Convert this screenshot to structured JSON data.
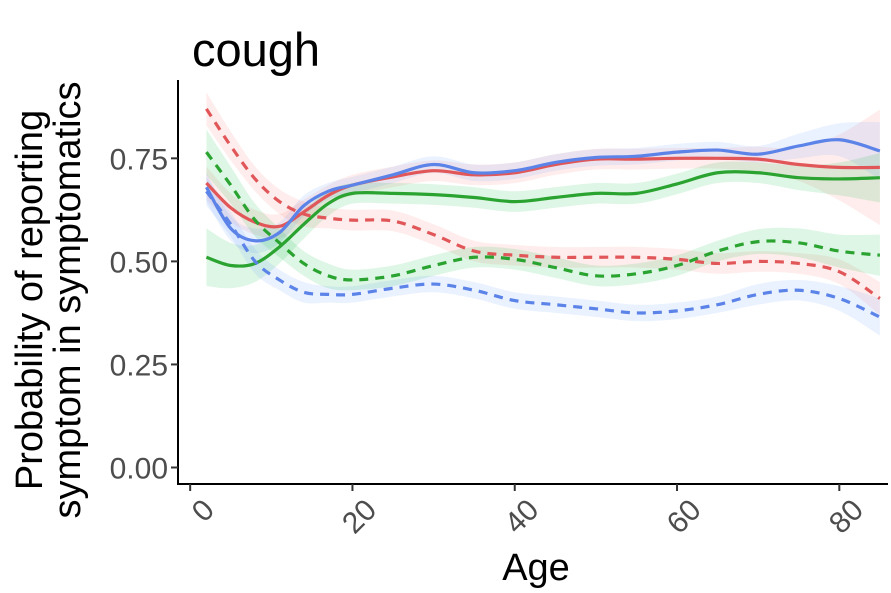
{
  "chart_data": {
    "type": "line",
    "title": "cough",
    "xlabel": "Age",
    "ylabel_lines": [
      "Probability of reporting",
      "symptom in symptomatics"
    ],
    "xlim": [
      -1.5,
      86
    ],
    "ylim": [
      -0.04,
      0.94
    ],
    "x_ticks": [
      0,
      20,
      40,
      60,
      80
    ],
    "x_tick_labels": [
      "0",
      "20",
      "40",
      "60",
      "80"
    ],
    "y_ticks": [
      0,
      0.25,
      0.5,
      0.75
    ],
    "y_tick_labels": [
      "0.00",
      "0.25",
      "0.50",
      "0.75"
    ],
    "grid": false,
    "legend": "none",
    "series": [
      {
        "color": "#E15759",
        "dash": "solid",
        "band_color": "#F8766D",
        "x": [
          2,
          5,
          8,
          11,
          14,
          17,
          20,
          25,
          30,
          35,
          40,
          45,
          50,
          55,
          60,
          65,
          70,
          75,
          80,
          85
        ],
        "y": [
          0.69,
          0.63,
          0.595,
          0.585,
          0.62,
          0.66,
          0.685,
          0.705,
          0.72,
          0.71,
          0.715,
          0.735,
          0.748,
          0.748,
          0.75,
          0.75,
          0.748,
          0.735,
          0.728,
          0.728
        ],
        "band": [
          0.04,
          0.035,
          0.03,
          0.03,
          0.03,
          0.025,
          0.025,
          0.025,
          0.025,
          0.025,
          0.025,
          0.025,
          0.025,
          0.025,
          0.025,
          0.025,
          0.03,
          0.04,
          0.08,
          0.14
        ]
      },
      {
        "color": "#5B83E8",
        "dash": "solid",
        "band_color": "#619CFF",
        "x": [
          2,
          5,
          8,
          11,
          14,
          17,
          20,
          25,
          30,
          35,
          40,
          45,
          50,
          55,
          60,
          65,
          70,
          75,
          80,
          85
        ],
        "y": [
          0.68,
          0.58,
          0.55,
          0.57,
          0.635,
          0.67,
          0.685,
          0.71,
          0.735,
          0.715,
          0.72,
          0.74,
          0.752,
          0.755,
          0.765,
          0.77,
          0.76,
          0.78,
          0.795,
          0.768
        ],
        "band": [
          0.035,
          0.03,
          0.03,
          0.025,
          0.025,
          0.02,
          0.02,
          0.02,
          0.02,
          0.02,
          0.02,
          0.02,
          0.02,
          0.02,
          0.02,
          0.02,
          0.02,
          0.03,
          0.04,
          0.07
        ]
      },
      {
        "color": "#2AA330",
        "dash": "solid",
        "band_color": "#00BA38",
        "x": [
          2,
          5,
          8,
          11,
          14,
          17,
          20,
          25,
          30,
          35,
          40,
          45,
          50,
          55,
          60,
          65,
          70,
          75,
          80,
          85
        ],
        "y": [
          0.51,
          0.49,
          0.495,
          0.535,
          0.59,
          0.64,
          0.665,
          0.665,
          0.662,
          0.655,
          0.645,
          0.655,
          0.665,
          0.665,
          0.688,
          0.715,
          0.715,
          0.703,
          0.7,
          0.703
        ],
        "band": [
          0.07,
          0.055,
          0.045,
          0.04,
          0.035,
          0.03,
          0.025,
          0.025,
          0.025,
          0.025,
          0.025,
          0.025,
          0.025,
          0.025,
          0.025,
          0.025,
          0.025,
          0.03,
          0.04,
          0.06
        ]
      },
      {
        "color": "#E15759",
        "dash": "dashed",
        "band_color": "#F8766D",
        "x": [
          2,
          5,
          8,
          11,
          14,
          17,
          20,
          25,
          30,
          35,
          40,
          45,
          50,
          55,
          60,
          65,
          70,
          75,
          80,
          85
        ],
        "y": [
          0.87,
          0.78,
          0.7,
          0.645,
          0.615,
          0.605,
          0.6,
          0.598,
          0.565,
          0.525,
          0.515,
          0.51,
          0.51,
          0.51,
          0.505,
          0.495,
          0.5,
          0.495,
          0.475,
          0.41
        ],
        "band": [
          0.04,
          0.035,
          0.03,
          0.03,
          0.03,
          0.025,
          0.025,
          0.025,
          0.025,
          0.025,
          0.025,
          0.025,
          0.025,
          0.025,
          0.025,
          0.025,
          0.025,
          0.025,
          0.03,
          0.04
        ]
      },
      {
        "color": "#5B83E8",
        "dash": "dashed",
        "band_color": "#619CFF",
        "x": [
          2,
          5,
          8,
          11,
          14,
          17,
          20,
          25,
          30,
          35,
          40,
          45,
          50,
          55,
          60,
          65,
          70,
          75,
          80,
          85
        ],
        "y": [
          0.67,
          0.59,
          0.5,
          0.455,
          0.425,
          0.42,
          0.42,
          0.435,
          0.445,
          0.43,
          0.405,
          0.395,
          0.385,
          0.375,
          0.38,
          0.395,
          0.42,
          0.43,
          0.41,
          0.365
        ],
        "band": [
          0.035,
          0.03,
          0.03,
          0.025,
          0.025,
          0.02,
          0.02,
          0.02,
          0.02,
          0.02,
          0.02,
          0.02,
          0.02,
          0.02,
          0.02,
          0.02,
          0.025,
          0.025,
          0.03,
          0.045
        ]
      },
      {
        "color": "#2AA330",
        "dash": "dashed",
        "band_color": "#00BA38",
        "x": [
          2,
          5,
          8,
          11,
          14,
          17,
          20,
          25,
          30,
          35,
          40,
          45,
          50,
          55,
          60,
          65,
          70,
          75,
          80,
          85
        ],
        "y": [
          0.765,
          0.685,
          0.6,
          0.545,
          0.495,
          0.465,
          0.455,
          0.465,
          0.49,
          0.51,
          0.505,
          0.485,
          0.465,
          0.47,
          0.49,
          0.525,
          0.548,
          0.545,
          0.525,
          0.515
        ],
        "band": [
          0.055,
          0.045,
          0.04,
          0.035,
          0.03,
          0.03,
          0.025,
          0.025,
          0.025,
          0.025,
          0.025,
          0.025,
          0.025,
          0.025,
          0.025,
          0.025,
          0.03,
          0.035,
          0.04,
          0.05
        ]
      }
    ]
  }
}
